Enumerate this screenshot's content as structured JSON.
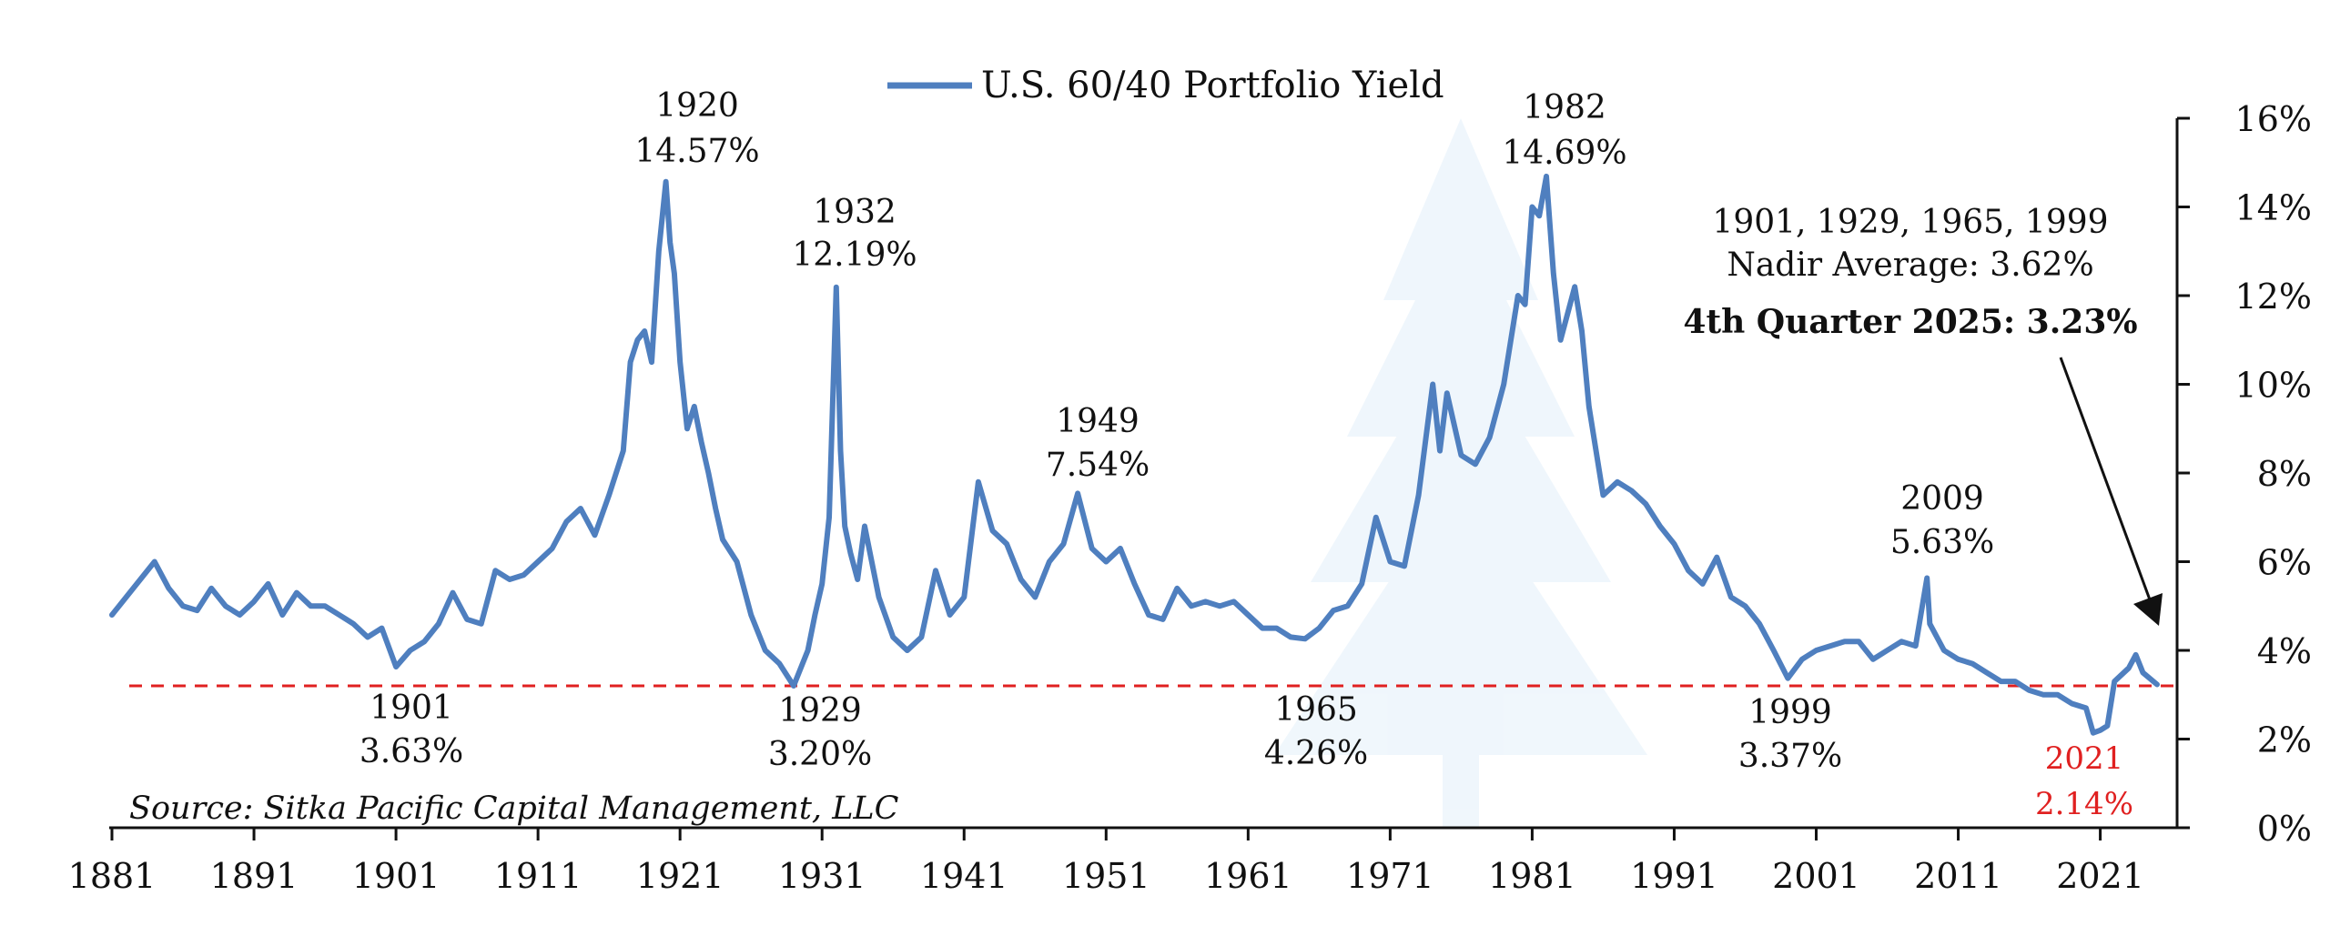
{
  "chart_data": {
    "type": "line",
    "series": [
      {
        "name": "U.S. 60/40 Portfolio Yield",
        "color": "#4f7fbf",
        "x": [
          1881,
          1882,
          1883,
          1884,
          1885,
          1886,
          1887,
          1888,
          1889,
          1890,
          1891,
          1892,
          1893,
          1894,
          1895,
          1896,
          1897,
          1898,
          1899,
          1900,
          1901,
          1902,
          1903,
          1904,
          1905,
          1906,
          1907,
          1908,
          1909,
          1910,
          1911,
          1912,
          1913,
          1914,
          1915,
          1916,
          1917,
          1917.5,
          1918,
          1918.5,
          1919,
          1919.5,
          1920,
          1920.3,
          1920.6,
          1921,
          1921.5,
          1922,
          1922.5,
          1923,
          1923.5,
          1924,
          1925,
          1926,
          1927,
          1928,
          1929,
          1929.5,
          1930,
          1930.5,
          1931,
          1931.5,
          1932,
          1932.3,
          1932.6,
          1933,
          1933.5,
          1934,
          1934.5,
          1935,
          1936,
          1937,
          1938,
          1939,
          1940,
          1941,
          1942,
          1943,
          1944,
          1945,
          1946,
          1947,
          1948,
          1949,
          1950,
          1951,
          1952,
          1953,
          1954,
          1955,
          1956,
          1957,
          1958,
          1959,
          1960,
          1961,
          1962,
          1963,
          1964,
          1965,
          1966,
          1967,
          1968,
          1969,
          1970,
          1971,
          1972,
          1973,
          1974,
          1974.5,
          1975,
          1976,
          1977,
          1978,
          1979,
          1980,
          1980.5,
          1981,
          1981.5,
          1982,
          1982.5,
          1983,
          1984,
          1984.5,
          1985,
          1986,
          1987,
          1988,
          1989,
          1990,
          1991,
          1992,
          1993,
          1994,
          1995,
          1996,
          1997,
          1998,
          1999,
          2000,
          2001,
          2002,
          2003,
          2004,
          2005,
          2006,
          2007,
          2008,
          2008.8,
          2009,
          2010,
          2011,
          2012,
          2013,
          2014,
          2015,
          2016,
          2017,
          2018,
          2019,
          2020,
          2020.5,
          2021,
          2021.5,
          2022,
          2023,
          2023.5,
          2024,
          2025
        ],
        "values": [
          4.8,
          5.2,
          5.6,
          6.0,
          5.4,
          5.0,
          4.9,
          5.4,
          5.0,
          4.8,
          5.1,
          5.5,
          4.8,
          5.3,
          5.0,
          5.0,
          4.8,
          4.6,
          4.3,
          4.5,
          3.63,
          4.0,
          4.2,
          4.6,
          5.3,
          4.7,
          4.6,
          5.8,
          5.6,
          5.7,
          6.0,
          6.3,
          6.9,
          7.2,
          6.6,
          7.5,
          8.5,
          10.5,
          11.0,
          11.2,
          10.5,
          13.0,
          14.57,
          13.2,
          12.5,
          10.5,
          9.0,
          9.5,
          8.7,
          8.0,
          7.2,
          6.5,
          6.0,
          4.8,
          4.0,
          3.7,
          3.2,
          3.6,
          4.0,
          4.8,
          5.5,
          7.0,
          12.19,
          8.5,
          6.8,
          6.2,
          5.6,
          6.8,
          6.0,
          5.2,
          4.3,
          4.0,
          4.3,
          5.8,
          4.8,
          5.2,
          7.8,
          6.7,
          6.4,
          5.6,
          5.2,
          6.0,
          6.4,
          7.54,
          6.3,
          6.0,
          6.3,
          5.5,
          4.8,
          4.7,
          5.4,
          5.0,
          5.1,
          5.0,
          5.1,
          4.8,
          4.5,
          4.5,
          4.3,
          4.26,
          4.5,
          4.9,
          5.0,
          5.5,
          7.0,
          6.0,
          5.9,
          7.5,
          10.0,
          8.5,
          9.8,
          8.4,
          8.2,
          8.8,
          10.0,
          12.0,
          11.8,
          14.0,
          13.8,
          14.69,
          12.5,
          11.0,
          12.2,
          11.2,
          9.5,
          7.5,
          7.8,
          7.6,
          7.3,
          6.8,
          6.4,
          5.8,
          5.5,
          6.1,
          5.2,
          5.0,
          4.6,
          4.0,
          3.37,
          3.8,
          4.0,
          4.1,
          4.2,
          4.2,
          3.8,
          4.0,
          4.2,
          4.1,
          5.63,
          4.6,
          4.0,
          3.8,
          3.7,
          3.5,
          3.3,
          3.3,
          3.1,
          3.0,
          3.0,
          2.8,
          2.7,
          2.14,
          2.2,
          2.3,
          3.3,
          3.6,
          3.9,
          3.5,
          3.23
        ]
      }
    ],
    "xlim": [
      1881,
      2025
    ],
    "ylim": [
      0,
      16
    ],
    "x_ticks": [
      "1881",
      "1891",
      "1901",
      "1911",
      "1921",
      "1931",
      "1941",
      "1951",
      "1961",
      "1971",
      "1981",
      "1991",
      "2001",
      "2011",
      "2021"
    ],
    "y_ticks": [
      "0%",
      "2%",
      "4%",
      "6%",
      "8%",
      "10%",
      "12%",
      "14%",
      "16%"
    ],
    "y_axis_side": "right",
    "grid": false,
    "legend_position": "top-center",
    "reference_line": {
      "value": 3.2,
      "style": "dashed",
      "color": "#e02020"
    },
    "annotations": {
      "p1920": {
        "year": "1920",
        "value": "14.57%"
      },
      "p1982": {
        "year": "1982",
        "value": "14.69%"
      },
      "p1932": {
        "year": "1932",
        "value": "12.19%"
      },
      "p1949": {
        "year": "1949",
        "value": "7.54%"
      },
      "p2009": {
        "year": "2009",
        "value": "5.63%"
      },
      "t1901": {
        "year": "1901",
        "value": "3.63%"
      },
      "t1929": {
        "year": "1929",
        "value": "3.20%"
      },
      "t1965": {
        "year": "1965",
        "value": "4.26%"
      },
      "t1999": {
        "year": "1999",
        "value": "3.37%"
      },
      "t2021": {
        "year": "2021",
        "value": "2.14%",
        "color": "#e02020"
      },
      "nadir_line1": "1901, 1929, 1965, 1999",
      "nadir_line2": "Nadir Average: 3.62%",
      "current": "4th Quarter 2025: 3.23%"
    },
    "source": "Source: Sitka Pacific Capital Management, LLC",
    "watermark": "tree-icon"
  }
}
